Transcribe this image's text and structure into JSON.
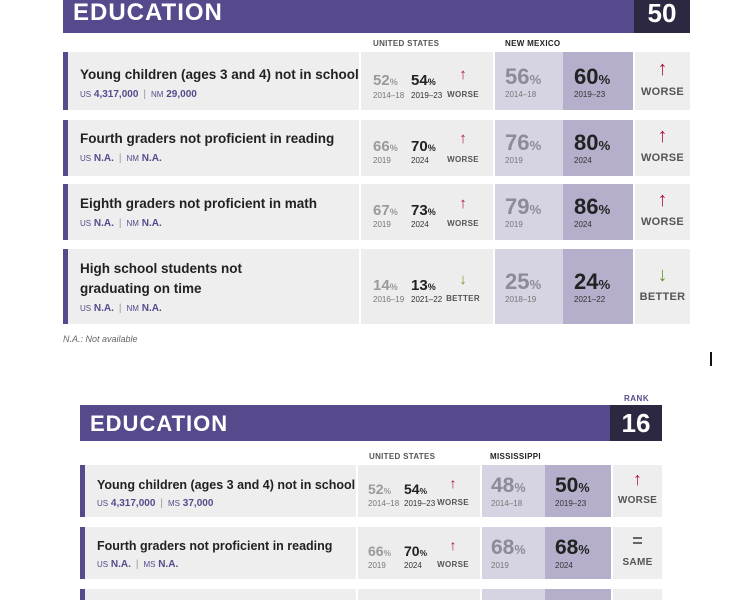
{
  "panel1": {
    "title": "EDUCATION",
    "rank": "50",
    "us_header": "UNITED STATES",
    "state_header": "NEW MEXICO",
    "us_abbr": "US",
    "state_abbr": "NM",
    "rows": [
      {
        "title": "Young children (ages 3 and 4) not in school",
        "title2": "",
        "us_n": "4,317,000",
        "st_n": "29,000",
        "us1": "52",
        "us1y": "2014–18",
        "us2": "54",
        "us2y": "2019–23",
        "us_arrow": "↑",
        "us_trend": "WORSE",
        "st1": "56",
        "st1y": "2014–18",
        "st2": "60",
        "st2y": "2019–23",
        "st_arrow": "↑",
        "st_trend": "WORSE"
      },
      {
        "title": "Fourth graders not proficient in reading",
        "title2": "",
        "us_n": "N.A.",
        "st_n": "N.A.",
        "us1": "66",
        "us1y": "2019",
        "us2": "70",
        "us2y": "2024",
        "us_arrow": "↑",
        "us_trend": "WORSE",
        "st1": "76",
        "st1y": "2019",
        "st2": "80",
        "st2y": "2024",
        "st_arrow": "↑",
        "st_trend": "WORSE"
      },
      {
        "title": "Eighth graders not proficient in math",
        "title2": "",
        "us_n": "N.A.",
        "st_n": "N.A.",
        "us1": "67",
        "us1y": "2019",
        "us2": "73",
        "us2y": "2024",
        "us_arrow": "↑",
        "us_trend": "WORSE",
        "st1": "79",
        "st1y": "2019",
        "st2": "86",
        "st2y": "2024",
        "st_arrow": "↑",
        "st_trend": "WORSE"
      },
      {
        "title": "High school students not",
        "title2": "graduating on time",
        "us_n": "N.A.",
        "st_n": "N.A.",
        "us1": "14",
        "us1y": "2016–19",
        "us2": "13",
        "us2y": "2021–22",
        "us_arrow": "↓",
        "us_trend": "BETTER",
        "st1": "25",
        "st1y": "2018–19",
        "st2": "24",
        "st2y": "2021–22",
        "st_arrow": "↓",
        "st_trend": "BETTER"
      }
    ],
    "footnote": "N.A.: Not available"
  },
  "panel2": {
    "rank_label": "RANK",
    "title": "EDUCATION",
    "rank": "16",
    "us_header": "UNITED STATES",
    "state_header": "MISSISSIPPI",
    "us_abbr": "US",
    "state_abbr": "MS",
    "rows": [
      {
        "title": "Young children (ages 3 and 4) not in school",
        "us_n": "4,317,000",
        "st_n": "37,000",
        "us1": "52",
        "us1y": "2014–18",
        "us2": "54",
        "us2y": "2019–23",
        "us_arrow": "↑",
        "us_trend": "WORSE",
        "st1": "48",
        "st1y": "2014–18",
        "st2": "50",
        "st2y": "2019–23",
        "st_arrow": "↑",
        "st_trend": "WORSE"
      },
      {
        "title": "Fourth graders not proficient in reading",
        "us_n": "N.A.",
        "st_n": "N.A.",
        "us1": "66",
        "us1y": "2019",
        "us2": "70",
        "us2y": "2024",
        "us_arrow": "↑",
        "us_trend": "WORSE",
        "st1": "68",
        "st1y": "2019",
        "st2": "68",
        "st2y": "2024",
        "st_arrow": "=",
        "st_trend": "SAME"
      }
    ]
  },
  "percent_sign": "%",
  "colors": {
    "band": "#574a8c",
    "rank_box": "#2c2842",
    "worse": "#b0173a",
    "better": "#6f9a2e"
  }
}
